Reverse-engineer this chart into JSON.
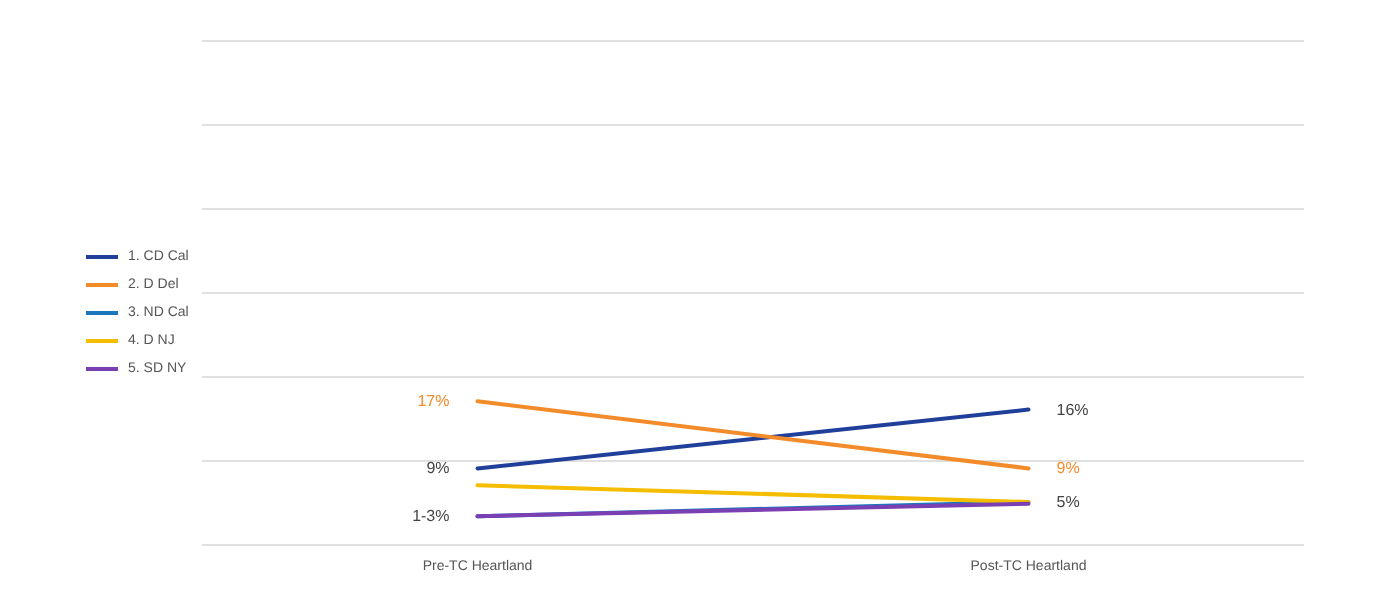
{
  "chart_data": {
    "type": "line",
    "categories": [
      "Pre-TC Heartland",
      "Post-TC Heartland"
    ],
    "series": [
      {
        "name": "1. CD Cal",
        "color": "#203f9a",
        "values": [
          9,
          16
        ],
        "value_labels": [
          "9%",
          "16%"
        ]
      },
      {
        "name": "2. D Del",
        "color": "#f38b2a",
        "values": [
          17,
          9
        ],
        "value_labels": [
          "17%",
          "9%"
        ]
      },
      {
        "name": "3. ND Cal",
        "color": "#1c76bc",
        "values": [
          3.3,
          5
        ],
        "value_labels": [
          null,
          "5%"
        ]
      },
      {
        "name": "4. D NJ",
        "color": "#f5bd00",
        "values": [
          7,
          5
        ]
      },
      {
        "name": "5. SD NY",
        "color": "#7a3fb2",
        "values": [
          3.3,
          4.8
        ]
      }
    ],
    "annotations": [
      {
        "text": "1-3%",
        "x": "Pre-TC Heartland",
        "y": 3.3
      }
    ],
    "ylim": [
      0,
      60
    ],
    "yticks": [
      {
        "value": 0,
        "label": null
      },
      {
        "value": 10,
        "label": null
      },
      {
        "value": 20,
        "label": null
      },
      {
        "value": 30,
        "label": null
      },
      {
        "value": 40,
        "label": null
      },
      {
        "value": 50,
        "label": null
      },
      {
        "value": 60,
        "label": null
      }
    ],
    "tick_labels": "x",
    "grid": "y",
    "legend": "left",
    "marker": "none",
    "line_style": "solid"
  }
}
